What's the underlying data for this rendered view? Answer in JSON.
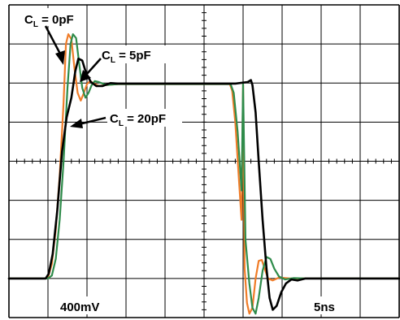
{
  "chart_data": {
    "type": "line",
    "title": "",
    "xlabel": "",
    "ylabel": "",
    "scale": {
      "vertical_per_div": "400mV",
      "horizontal_per_div": "5ns"
    },
    "grid": true,
    "x_unit": "ns",
    "y_unit": "mV",
    "xlim": [
      0,
      50
    ],
    "ylim": [
      -1600,
      1600
    ],
    "colors": {
      "grid": "#000000",
      "cl_0pf": "#f07c28",
      "cl_5pf": "#2e8b4a",
      "cl_20pf": "#000000"
    },
    "series": [
      {
        "name": "CL = 0pF",
        "color": "#f07c28",
        "points": [
          [
            0,
            -1200
          ],
          [
            4.6,
            -1200
          ],
          [
            5.0,
            -1190
          ],
          [
            5.5,
            -1050
          ],
          [
            6.0,
            -700
          ],
          [
            6.5,
            -150
          ],
          [
            7.0,
            600
          ],
          [
            7.3,
            1200
          ],
          [
            7.6,
            1300
          ],
          [
            8.0,
            1250
          ],
          [
            8.4,
            950
          ],
          [
            8.8,
            700
          ],
          [
            9.2,
            620
          ],
          [
            9.6,
            700
          ],
          [
            10.0,
            790
          ],
          [
            10.4,
            820
          ],
          [
            10.8,
            800
          ],
          [
            11.5,
            770
          ],
          [
            12.5,
            780
          ],
          [
            14.0,
            790
          ],
          [
            30.0,
            790
          ],
          [
            28.3,
            790
          ],
          [
            28.6,
            720
          ],
          [
            29.0,
            400
          ],
          [
            29.4,
            -100
          ],
          [
            29.8,
            -600
          ],
          [
            30.2,
            -1100
          ],
          [
            30.5,
            -1450
          ],
          [
            30.8,
            -1560
          ],
          [
            31.2,
            -1500
          ],
          [
            31.6,
            -1200
          ],
          [
            32.0,
            -1020
          ],
          [
            32.4,
            -1010
          ],
          [
            32.8,
            -1110
          ],
          [
            33.2,
            -1200
          ],
          [
            33.8,
            -1220
          ],
          [
            34.6,
            -1190
          ],
          [
            36.0,
            -1200
          ],
          [
            50.0,
            -1200
          ]
        ]
      },
      {
        "name": "CL = 5pF",
        "color": "#2e8b4a",
        "points": [
          [
            0,
            -1200
          ],
          [
            5.0,
            -1200
          ],
          [
            5.5,
            -1170
          ],
          [
            6.0,
            -1000
          ],
          [
            6.5,
            -600
          ],
          [
            7.0,
            0
          ],
          [
            7.5,
            750
          ],
          [
            7.9,
            1200
          ],
          [
            8.2,
            1300
          ],
          [
            8.6,
            1260
          ],
          [
            9.0,
            1000
          ],
          [
            9.4,
            750
          ],
          [
            9.8,
            650
          ],
          [
            10.2,
            700
          ],
          [
            10.6,
            780
          ],
          [
            11.0,
            820
          ],
          [
            11.5,
            810
          ],
          [
            12.5,
            780
          ],
          [
            14.0,
            790
          ],
          [
            30.0,
            790
          ],
          [
            28.4,
            790
          ],
          [
            28.8,
            700
          ],
          [
            29.3,
            300
          ],
          [
            29.8,
            -300
          ],
          [
            30.3,
            -800
          ],
          [
            30.8,
            -1250
          ],
          [
            31.2,
            -1500
          ],
          [
            31.6,
            -1560
          ],
          [
            32.0,
            -1400
          ],
          [
            32.5,
            -1120
          ],
          [
            33.0,
            -980
          ],
          [
            33.5,
            -1000
          ],
          [
            34.0,
            -1100
          ],
          [
            34.6,
            -1180
          ],
          [
            35.4,
            -1210
          ],
          [
            36.5,
            -1195
          ],
          [
            38.0,
            -1200
          ],
          [
            50.0,
            -1200
          ]
        ]
      },
      {
        "name": "CL = 20pF",
        "color": "#000000",
        "points": [
          [
            0,
            -1200
          ],
          [
            4.7,
            -1200
          ],
          [
            5.1,
            -1150
          ],
          [
            5.6,
            -950
          ],
          [
            6.2,
            -500
          ],
          [
            6.8,
            100
          ],
          [
            7.4,
            450
          ],
          [
            8.0,
            650
          ],
          [
            8.5,
            920
          ],
          [
            8.9,
            1050
          ],
          [
            9.4,
            1030
          ],
          [
            9.9,
            900
          ],
          [
            10.5,
            810
          ],
          [
            11.2,
            770
          ],
          [
            12.0,
            770
          ],
          [
            13.0,
            800
          ],
          [
            14.0,
            795
          ],
          [
            29.0,
            795
          ],
          [
            30.6,
            810
          ],
          [
            31.0,
            830
          ],
          [
            31.2,
            780
          ],
          [
            31.6,
            500
          ],
          [
            32.0,
            0
          ],
          [
            32.5,
            -600
          ],
          [
            33.0,
            -1100
          ],
          [
            33.4,
            -1400
          ],
          [
            33.8,
            -1520
          ],
          [
            34.3,
            -1480
          ],
          [
            34.9,
            -1340
          ],
          [
            35.5,
            -1250
          ],
          [
            36.2,
            -1210
          ],
          [
            37.0,
            -1220
          ],
          [
            38.0,
            -1200
          ],
          [
            50.0,
            -1200
          ]
        ]
      }
    ],
    "labels": {
      "vertical_scale": "400mV",
      "horizontal_scale": "5ns",
      "cl_0pf": {
        "base": "C",
        "sub": "L",
        "rest": " = 0pF"
      },
      "cl_5pf": {
        "base": "C",
        "sub": "L",
        "rest": " = 5pF"
      },
      "cl_20pf": {
        "base": "C",
        "sub": "L",
        "rest": " = 20pF"
      }
    }
  }
}
